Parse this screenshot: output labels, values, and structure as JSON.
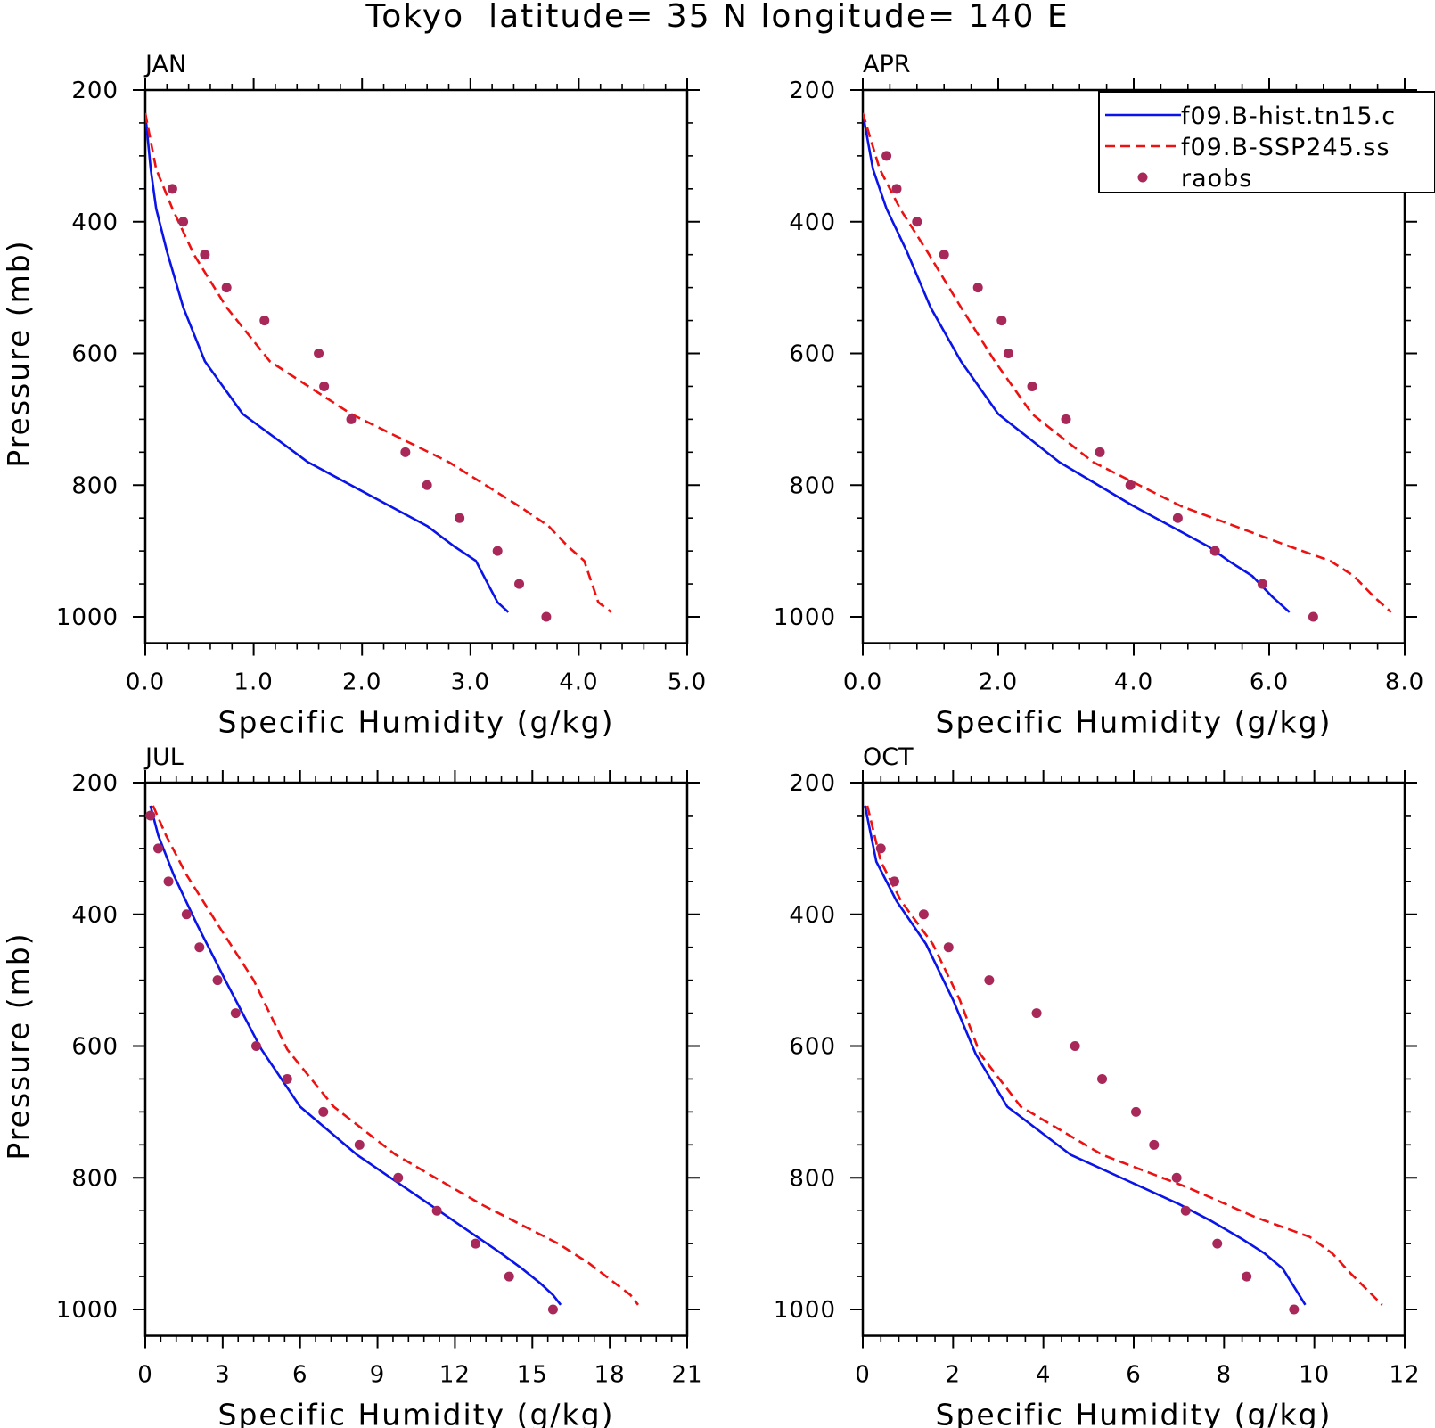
{
  "figure_title": "Tokyo  latitude= 35 N longitude= 140 E",
  "colors": {
    "hist": "#0a14e8",
    "ssp": "#ee1111",
    "raobs": "#a8285a"
  },
  "legend": {
    "entries": [
      {
        "label": "f09.B-hist.tn15.c",
        "style": "solid",
        "color": "#0a14e8"
      },
      {
        "label": "f09.B-SSP245.ss",
        "style": "dashed",
        "color": "#ee1111"
      },
      {
        "label": "raobs",
        "style": "marker",
        "color": "#a8285a"
      }
    ]
  },
  "chart_data": [
    {
      "type": "line",
      "panel_label": "JAN",
      "xlabel": "Specific Humidity (g/kg)",
      "ylabel": "Pressure (mb)",
      "xlim": [
        0,
        5
      ],
      "ylim": [
        1040,
        200
      ],
      "xticks": [
        0,
        1,
        2,
        3,
        4,
        5
      ],
      "xtick_labels": [
        "0.0",
        "1.0",
        "2.0",
        "3.0",
        "4.0",
        "5.0"
      ],
      "yticks": [
        200,
        400,
        600,
        800,
        1000
      ],
      "ytick_labels": [
        "200",
        "400",
        "600",
        "800",
        "1000"
      ],
      "legend": false,
      "series": [
        {
          "name": "f09.B-hist.tn15.c",
          "style": "solid",
          "x": [
            0.0,
            0.05,
            0.1,
            0.2,
            0.35,
            0.55,
            0.9,
            1.5,
            2.6,
            2.85,
            3.05,
            3.25,
            3.35
          ],
          "y": [
            235,
            320,
            380,
            445,
            530,
            612,
            692,
            765,
            862,
            893,
            915,
            978,
            993
          ]
        },
        {
          "name": "f09.B-SSP245.ss",
          "style": "dashed",
          "x": [
            0.0,
            0.1,
            0.25,
            0.45,
            0.75,
            1.15,
            1.9,
            2.8,
            3.45,
            3.72,
            3.9,
            4.05,
            4.18,
            4.3
          ],
          "y": [
            235,
            320,
            380,
            450,
            530,
            612,
            692,
            765,
            832,
            862,
            893,
            915,
            978,
            993
          ]
        },
        {
          "name": "raobs",
          "style": "marker",
          "x": [
            0.25,
            0.35,
            0.55,
            0.75,
            1.1,
            1.6,
            1.65,
            1.9,
            2.4,
            2.6,
            2.9,
            3.25,
            3.45,
            3.7
          ],
          "y": [
            350,
            400,
            450,
            500,
            550,
            600,
            650,
            700,
            750,
            800,
            850,
            900,
            950,
            1000
          ]
        }
      ]
    },
    {
      "type": "line",
      "panel_label": "APR",
      "xlabel": "Specific Humidity (g/kg)",
      "ylabel": "",
      "xlim": [
        0,
        8
      ],
      "ylim": [
        1040,
        200
      ],
      "xticks": [
        0,
        2,
        4,
        6,
        8
      ],
      "xtick_labels": [
        "0.0",
        "2.0",
        "4.0",
        "6.0",
        "8.0"
      ],
      "yticks": [
        200,
        400,
        600,
        800,
        1000
      ],
      "ytick_labels": [
        "200",
        "400",
        "600",
        "800",
        "1000"
      ],
      "legend": true,
      "series": [
        {
          "name": "f09.B-hist.tn15.c",
          "style": "solid",
          "x": [
            0.0,
            0.15,
            0.35,
            0.65,
            1.0,
            1.45,
            2.0,
            2.9,
            4.0,
            5.1,
            5.4,
            5.75,
            6.05,
            6.3
          ],
          "y": [
            235,
            320,
            380,
            445,
            530,
            612,
            692,
            765,
            832,
            893,
            915,
            938,
            970,
            993
          ]
        },
        {
          "name": "f09.B-SSP245.ss",
          "style": "dashed",
          "x": [
            0.0,
            0.25,
            0.55,
            0.95,
            1.45,
            1.95,
            2.5,
            3.4,
            4.7,
            6.3,
            6.9,
            7.25,
            7.55,
            7.8
          ],
          "y": [
            235,
            320,
            380,
            445,
            530,
            612,
            692,
            765,
            832,
            893,
            915,
            938,
            970,
            993
          ]
        },
        {
          "name": "raobs",
          "style": "marker",
          "x": [
            0.35,
            0.5,
            0.8,
            1.2,
            1.7,
            2.05,
            2.15,
            2.5,
            3.0,
            3.5,
            3.95,
            4.65,
            5.2,
            5.9,
            6.65
          ],
          "y": [
            300,
            350,
            400,
            450,
            500,
            550,
            600,
            650,
            700,
            750,
            800,
            850,
            900,
            950,
            1000
          ]
        }
      ]
    },
    {
      "type": "line",
      "panel_label": "JUL",
      "xlabel": "Specific Humidity (g/kg)",
      "ylabel": "Pressure (mb)",
      "xlim": [
        0,
        21
      ],
      "ylim": [
        1040,
        200
      ],
      "xticks": [
        0,
        3,
        6,
        9,
        12,
        15,
        18,
        21
      ],
      "xtick_labels": [
        "0",
        "3",
        "6",
        "9",
        "12",
        "15",
        "18",
        "21"
      ],
      "yticks": [
        200,
        400,
        600,
        800,
        1000
      ],
      "ytick_labels": [
        "200",
        "400",
        "600",
        "800",
        "1000"
      ],
      "legend": false,
      "series": [
        {
          "name": "f09.B-hist.tn15.c",
          "style": "solid",
          "x": [
            0.2,
            0.5,
            1.1,
            2.0,
            3.1,
            4.5,
            6.0,
            8.2,
            11.0,
            13.8,
            14.6,
            15.3,
            15.8,
            16.1
          ],
          "y": [
            235,
            280,
            340,
            415,
            500,
            605,
            692,
            765,
            840,
            915,
            938,
            960,
            978,
            993
          ]
        },
        {
          "name": "f09.B-SSP245.ss",
          "style": "dashed",
          "x": [
            0.3,
            0.8,
            1.6,
            2.8,
            4.2,
            5.5,
            7.3,
            9.7,
            13.0,
            16.0,
            17.2,
            18.2,
            18.8,
            19.1
          ],
          "y": [
            235,
            280,
            340,
            415,
            500,
            605,
            692,
            765,
            840,
            900,
            930,
            960,
            978,
            993
          ]
        },
        {
          "name": "raobs",
          "style": "marker",
          "x": [
            0.2,
            0.5,
            0.9,
            1.6,
            2.1,
            2.8,
            3.5,
            4.3,
            5.5,
            6.9,
            8.3,
            9.8,
            11.3,
            12.8,
            14.1,
            15.8
          ],
          "y": [
            250,
            300,
            350,
            400,
            450,
            500,
            550,
            600,
            650,
            700,
            750,
            800,
            850,
            900,
            950,
            1000
          ]
        }
      ]
    },
    {
      "type": "line",
      "panel_label": "OCT",
      "xlabel": "Specific Humidity (g/kg)",
      "ylabel": "",
      "xlim": [
        0,
        12
      ],
      "ylim": [
        1040,
        200
      ],
      "xticks": [
        0,
        2,
        4,
        6,
        8,
        10,
        12
      ],
      "xtick_labels": [
        "0",
        "2",
        "4",
        "6",
        "8",
        "10",
        "12"
      ],
      "yticks": [
        200,
        400,
        600,
        800,
        1000
      ],
      "ytick_labels": [
        "200",
        "400",
        "600",
        "800",
        "1000"
      ],
      "legend": false,
      "series": [
        {
          "name": "f09.B-hist.tn15.c",
          "style": "solid",
          "x": [
            0.05,
            0.3,
            0.75,
            1.4,
            2.0,
            2.5,
            3.2,
            4.6,
            7.0,
            7.7,
            8.4,
            8.9,
            9.3,
            9.8
          ],
          "y": [
            235,
            320,
            380,
            445,
            530,
            612,
            692,
            765,
            840,
            865,
            893,
            915,
            938,
            993
          ]
        },
        {
          "name": "f09.B-SSP245.ss",
          "style": "dashed",
          "x": [
            0.1,
            0.4,
            0.85,
            1.55,
            2.15,
            2.6,
            3.5,
            5.3,
            7.2,
            8.7,
            9.9,
            10.4,
            10.8,
            11.5
          ],
          "y": [
            235,
            320,
            380,
            445,
            530,
            612,
            692,
            765,
            815,
            860,
            890,
            915,
            945,
            993
          ]
        },
        {
          "name": "raobs",
          "style": "marker",
          "x": [
            0.4,
            0.7,
            1.35,
            1.9,
            2.8,
            3.85,
            4.7,
            5.3,
            6.05,
            6.45,
            6.95,
            7.15,
            7.85,
            8.5,
            9.55
          ],
          "y": [
            300,
            350,
            400,
            450,
            500,
            550,
            600,
            650,
            700,
            750,
            800,
            850,
            900,
            950,
            1000
          ]
        }
      ]
    }
  ]
}
